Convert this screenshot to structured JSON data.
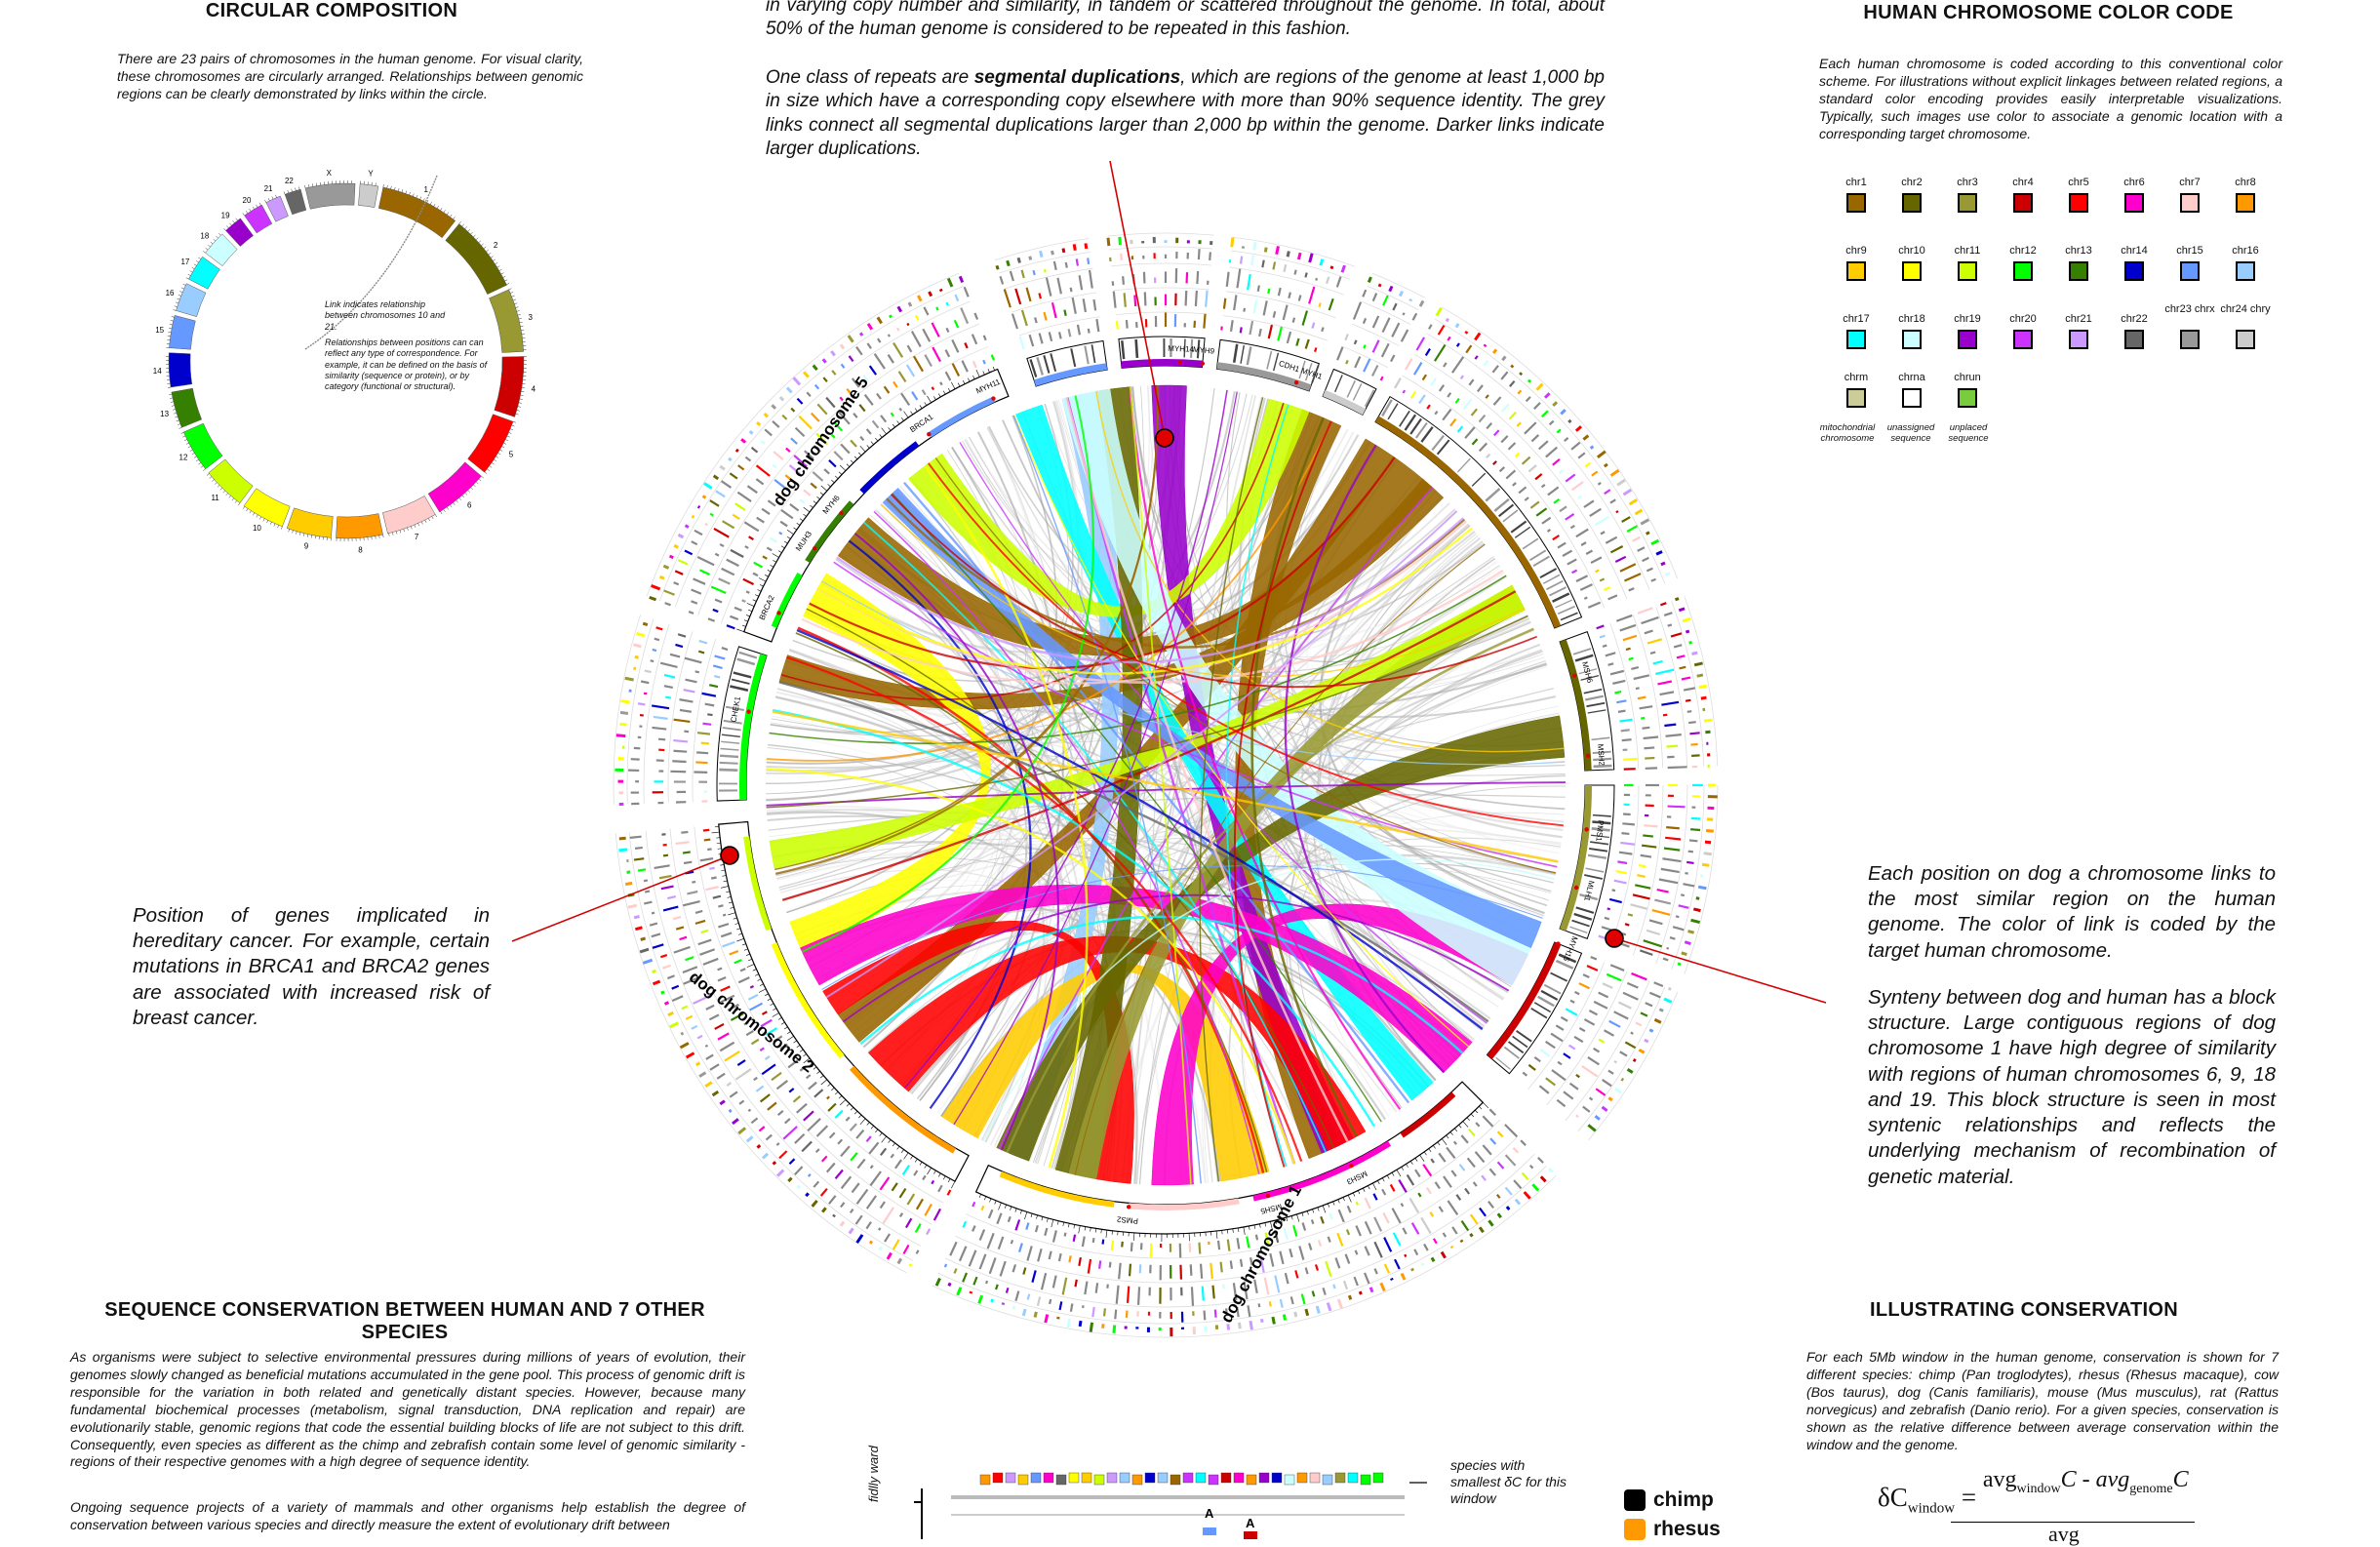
{
  "circular": {
    "title": "CIRCULAR COMPOSITION",
    "text": "There are 23 pairs of chromosomes in the human genome. For visual clarity, these chromosomes are circularly arranged. Relationships between genomic regions can be clearly demonstrated by links within the circle.",
    "link_note_1": "Link indicates relationship between chromosomes 10 and 21.",
    "link_note_2": "Relationships between positions can can reflect any type of correspondence. For example, it can be defined on the basis of similarity (sequence or protein), or by category (functional or structural).",
    "ring_labels": [
      "1",
      "2",
      "3",
      "4",
      "5",
      "6",
      "7",
      "8",
      "9",
      "10",
      "11",
      "12",
      "13",
      "14",
      "15",
      "16",
      "17",
      "18",
      "19",
      "20",
      "21",
      "22",
      "X",
      "Y"
    ]
  },
  "repeats": {
    "text_1": "in varying copy number and similarity, in tandem or scattered throughout the genome. In total, about 50% of the human genome is considered to be repeated in this fashion.",
    "text_2_pre": "One class of repeats are ",
    "text_2_bold": "segmental duplications",
    "text_2_post": ", which are regions of the genome at least 1,000 bp in size which have a corresponding copy elsewhere with more than 90% sequence identity. The grey links connect all segmental duplications larger than 2,000 bp within the genome. Darker links indicate larger duplications."
  },
  "color_code": {
    "title": "HUMAN CHROMOSOME COLOR CODE",
    "text": "Each human chromosome is coded according to this conventional color scheme. For illustrations without explicit linkages between related regions, a standard color encoding provides easily interpretable visualizations. Typically, such images use color to associate a genomic location with a corresponding target chromosome.",
    "swatches": [
      {
        "label": "chr1",
        "color": "#996600"
      },
      {
        "label": "chr2",
        "color": "#666600"
      },
      {
        "label": "chr3",
        "color": "#999933"
      },
      {
        "label": "chr4",
        "color": "#cc0000"
      },
      {
        "label": "chr5",
        "color": "#ff0000"
      },
      {
        "label": "chr6",
        "color": "#ff00cc"
      },
      {
        "label": "chr7",
        "color": "#ffcccc"
      },
      {
        "label": "chr8",
        "color": "#ff9900"
      },
      {
        "label": "chr9",
        "color": "#ffcc00"
      },
      {
        "label": "chr10",
        "color": "#ffff00"
      },
      {
        "label": "chr11",
        "color": "#ccff00"
      },
      {
        "label": "chr12",
        "color": "#00ff00"
      },
      {
        "label": "chr13",
        "color": "#358000"
      },
      {
        "label": "chr14",
        "color": "#0000cc"
      },
      {
        "label": "chr15",
        "color": "#6699ff"
      },
      {
        "label": "chr16",
        "color": "#99ccff"
      },
      {
        "label": "chr17",
        "color": "#00ffff"
      },
      {
        "label": "chr18",
        "color": "#ccffff"
      },
      {
        "label": "chr19",
        "color": "#9900cc"
      },
      {
        "label": "chr20",
        "color": "#cc33ff"
      },
      {
        "label": "chr21",
        "color": "#cc99ff"
      },
      {
        "label": "chr22",
        "color": "#666666"
      },
      {
        "label": "chr23 chrx",
        "color": "#999999"
      },
      {
        "label": "chr24 chry",
        "color": "#cccccc"
      },
      {
        "label": "chrm",
        "color": "#cccc99"
      },
      {
        "label": "chrna",
        "color": "#ffffff"
      },
      {
        "label": "chrun",
        "color": "#79cc3d"
      }
    ],
    "foot_m": "mitochondrial chromosome",
    "foot_na": "unassigned sequence",
    "foot_un": "unplaced sequence"
  },
  "dog": {
    "text_1": "Each position on dog a chromosome links to the most similar region on the human genome. The color of link is coded by the target human chromosome.",
    "text_2": "Synteny between dog and human has a block structure. Large contiguous regions of dog chromosome 1 have high degree of similarity with regions of human chromosomes 6, 9, 18 and 19. This block structure is seen in most syntenic relationships and reflects the underlying mechanism of recombination of genetic material."
  },
  "cancer": {
    "text": "Position of genes implicated in hereditary cancer. For example, certain mutations in BRCA1 and BRCA2 genes are associated with increased risk of breast cancer."
  },
  "circos": {
    "chromosome_labels": [
      "dog chromosome 5",
      "dog chromosome 1",
      "dog chromosome 2"
    ],
    "gene_labels": [
      "MYH11",
      "MYH14",
      "MYH9",
      "BRCA1",
      "MUH3",
      "MYH6",
      "BRCA2",
      "CHEK1",
      "MSH6",
      "MSH2",
      "PMS1",
      "MLH1",
      "MYH15",
      "MSH3",
      "MSH5",
      "PMS2",
      "CDH1 MYH1"
    ]
  },
  "conservation": {
    "title": "SEQUENCE CONSERVATION BETWEEN HUMAN AND 7 OTHER SPECIES",
    "text_1": "As organisms were subject to selective environmental pressures during millions of years of evolution, their genomes slowly changed as beneficial mutations accumulated in the gene pool. This process of genomic drift is responsible for the variation in both related and genetically distant species.  However, because many fundamental biochemical processes (metabolism, signal transduction, DNA replication and repair) are evolutionarily stable, genomic regions that code the essential building blocks of life are not subject to this drift. Consequently, even species as different as the chimp and zebrafish contain some level of genomic similarity - regions of their respective genomes with a high degree of sequence identity.",
    "text_2": "Ongoing sequence projects of a variety of mammals and other organisms help establish the degree of conservation between various species and directly measure the extent of evolutionary drift between"
  },
  "illustrating": {
    "title": "ILLUSTRATING CONSERVATION",
    "text": "For each 5Mb window in the human genome, conservation is shown for 7 different species: chimp (Pan troglodytes), rhesus (Rhesus macaque), cow (Bos taurus), dog (Canis familiaris), mouse (Mus musculus), rat (Rattus norvegicus) and zebrafish (Danio rerio). For a given species, conservation is shown as the relative difference between average conservation within the window and the genome.",
    "formula_lhs": "δC",
    "formula_lhs_sub": "window",
    "formula_num_a": "avg",
    "formula_num_a_sub": "window",
    "formula_num_b": "C - avg",
    "formula_num_b_sub": "genome",
    "formula_num_c": "C",
    "formula_den": "avg"
  },
  "legend_panel": {
    "note": "species with smallest δC for this window",
    "marker_a": "A",
    "side_label": "fidlly ward",
    "species": [
      {
        "name": "chimp",
        "color": "#000000"
      },
      {
        "name": "rhesus",
        "color": "#ff9900"
      }
    ]
  }
}
